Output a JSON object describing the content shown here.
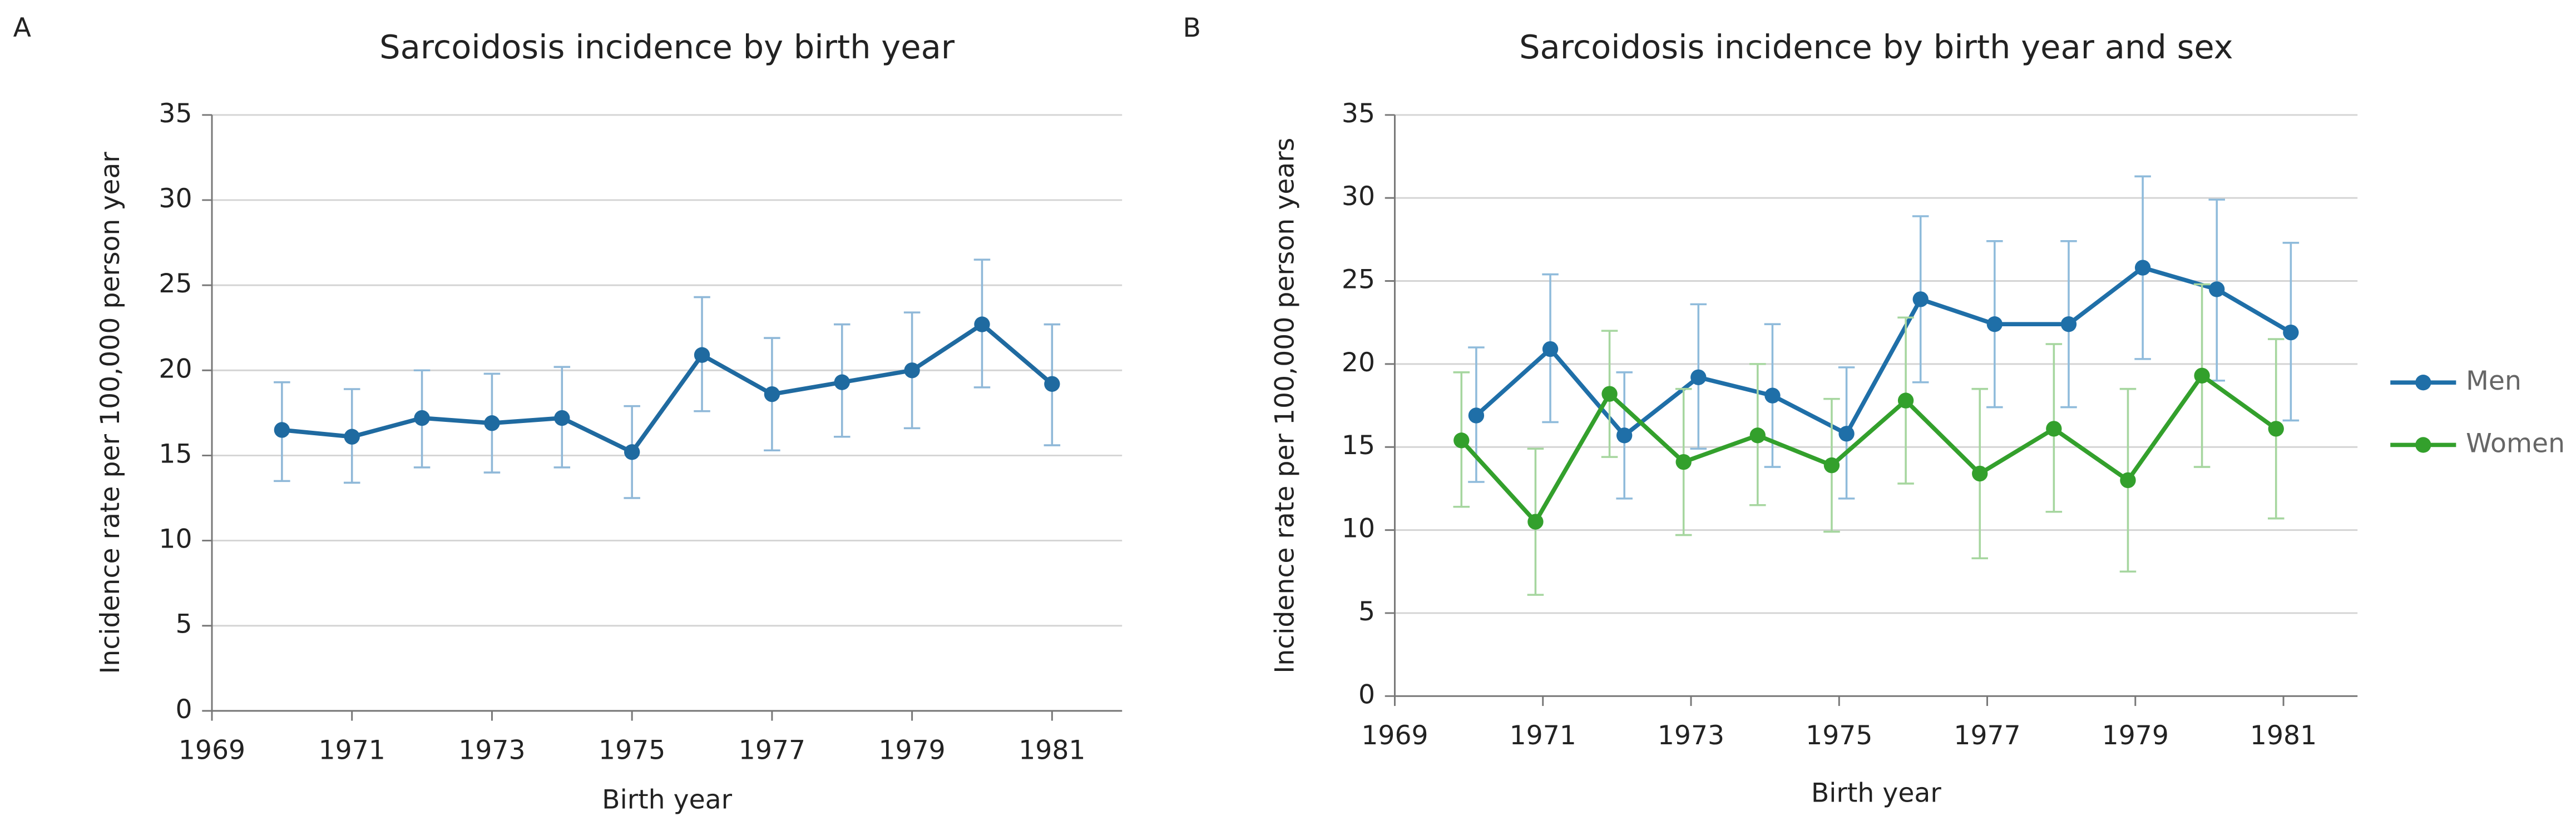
{
  "chart_data": [
    {
      "type": "line",
      "label": "A",
      "title": "Sarcoidosis incidence by birth year",
      "xlabel": "Birth year",
      "ylabel": "Incidence rate per 100,000 person year",
      "x": [
        1970,
        1971,
        1972,
        1973,
        1974,
        1975,
        1976,
        1977,
        1978,
        1979,
        1980,
        1981
      ],
      "series": [
        {
          "color": "#1f6aa0",
          "error_color": "#8fb8d8",
          "values": [
            16.5,
            16.1,
            17.2,
            16.9,
            17.2,
            15.2,
            20.9,
            18.6,
            19.3,
            20.0,
            22.7,
            19.2
          ],
          "ci_low": [
            13.5,
            13.4,
            14.3,
            14.0,
            14.3,
            12.5,
            17.6,
            15.3,
            16.1,
            16.6,
            19.0,
            15.6
          ],
          "ci_high": [
            19.3,
            18.9,
            20.0,
            19.8,
            20.2,
            17.9,
            24.3,
            21.9,
            22.7,
            23.4,
            26.5,
            22.7
          ]
        }
      ],
      "xlim": [
        1969,
        1982
      ],
      "xticks": [
        1969,
        1971,
        1973,
        1975,
        1977,
        1979,
        1981
      ],
      "ylim": [
        0,
        35
      ],
      "yticks": [
        0,
        5,
        10,
        15,
        20,
        25,
        30,
        35
      ],
      "grid": true
    },
    {
      "type": "line",
      "label": "B",
      "title": "Sarcoidosis incidence by birth year and sex",
      "xlabel": "Birth year",
      "ylabel": "Incidence rate per 100,000 person years",
      "x": [
        1970,
        1971,
        1972,
        1973,
        1974,
        1975,
        1976,
        1977,
        1978,
        1979,
        1980,
        1981
      ],
      "series": [
        {
          "name": "Men",
          "color": "#1f6fa8",
          "error_color": "#8fbbdb",
          "values": [
            16.9,
            20.9,
            15.7,
            19.2,
            18.1,
            15.8,
            23.9,
            22.4,
            22.4,
            25.8,
            24.5,
            21.9
          ],
          "ci_low": [
            12.9,
            16.5,
            11.9,
            14.9,
            13.8,
            11.9,
            18.9,
            17.4,
            17.4,
            20.3,
            19.0,
            16.6
          ],
          "ci_high": [
            21.0,
            25.4,
            19.5,
            23.6,
            22.4,
            19.8,
            28.9,
            27.4,
            27.4,
            31.3,
            29.9,
            27.3
          ]
        },
        {
          "name": "Women",
          "color": "#33a02c",
          "error_color": "#a6d69f",
          "values": [
            15.4,
            10.5,
            18.2,
            14.1,
            15.7,
            13.9,
            17.8,
            13.4,
            16.1,
            13.0,
            19.3,
            16.1
          ],
          "ci_low": [
            11.4,
            6.1,
            14.4,
            9.7,
            11.5,
            9.9,
            12.8,
            8.3,
            11.1,
            7.5,
            13.8,
            10.7
          ],
          "ci_high": [
            19.5,
            14.9,
            22.0,
            18.5,
            20.0,
            17.9,
            22.8,
            18.5,
            21.2,
            18.5,
            24.8,
            21.5
          ]
        }
      ],
      "xlim": [
        1969,
        1982
      ],
      "xticks": [
        1969,
        1971,
        1973,
        1975,
        1977,
        1979,
        1981
      ],
      "ylim": [
        0,
        35
      ],
      "yticks": [
        0,
        5,
        10,
        15,
        20,
        25,
        30,
        35
      ],
      "grid": true,
      "legend": "right"
    }
  ]
}
